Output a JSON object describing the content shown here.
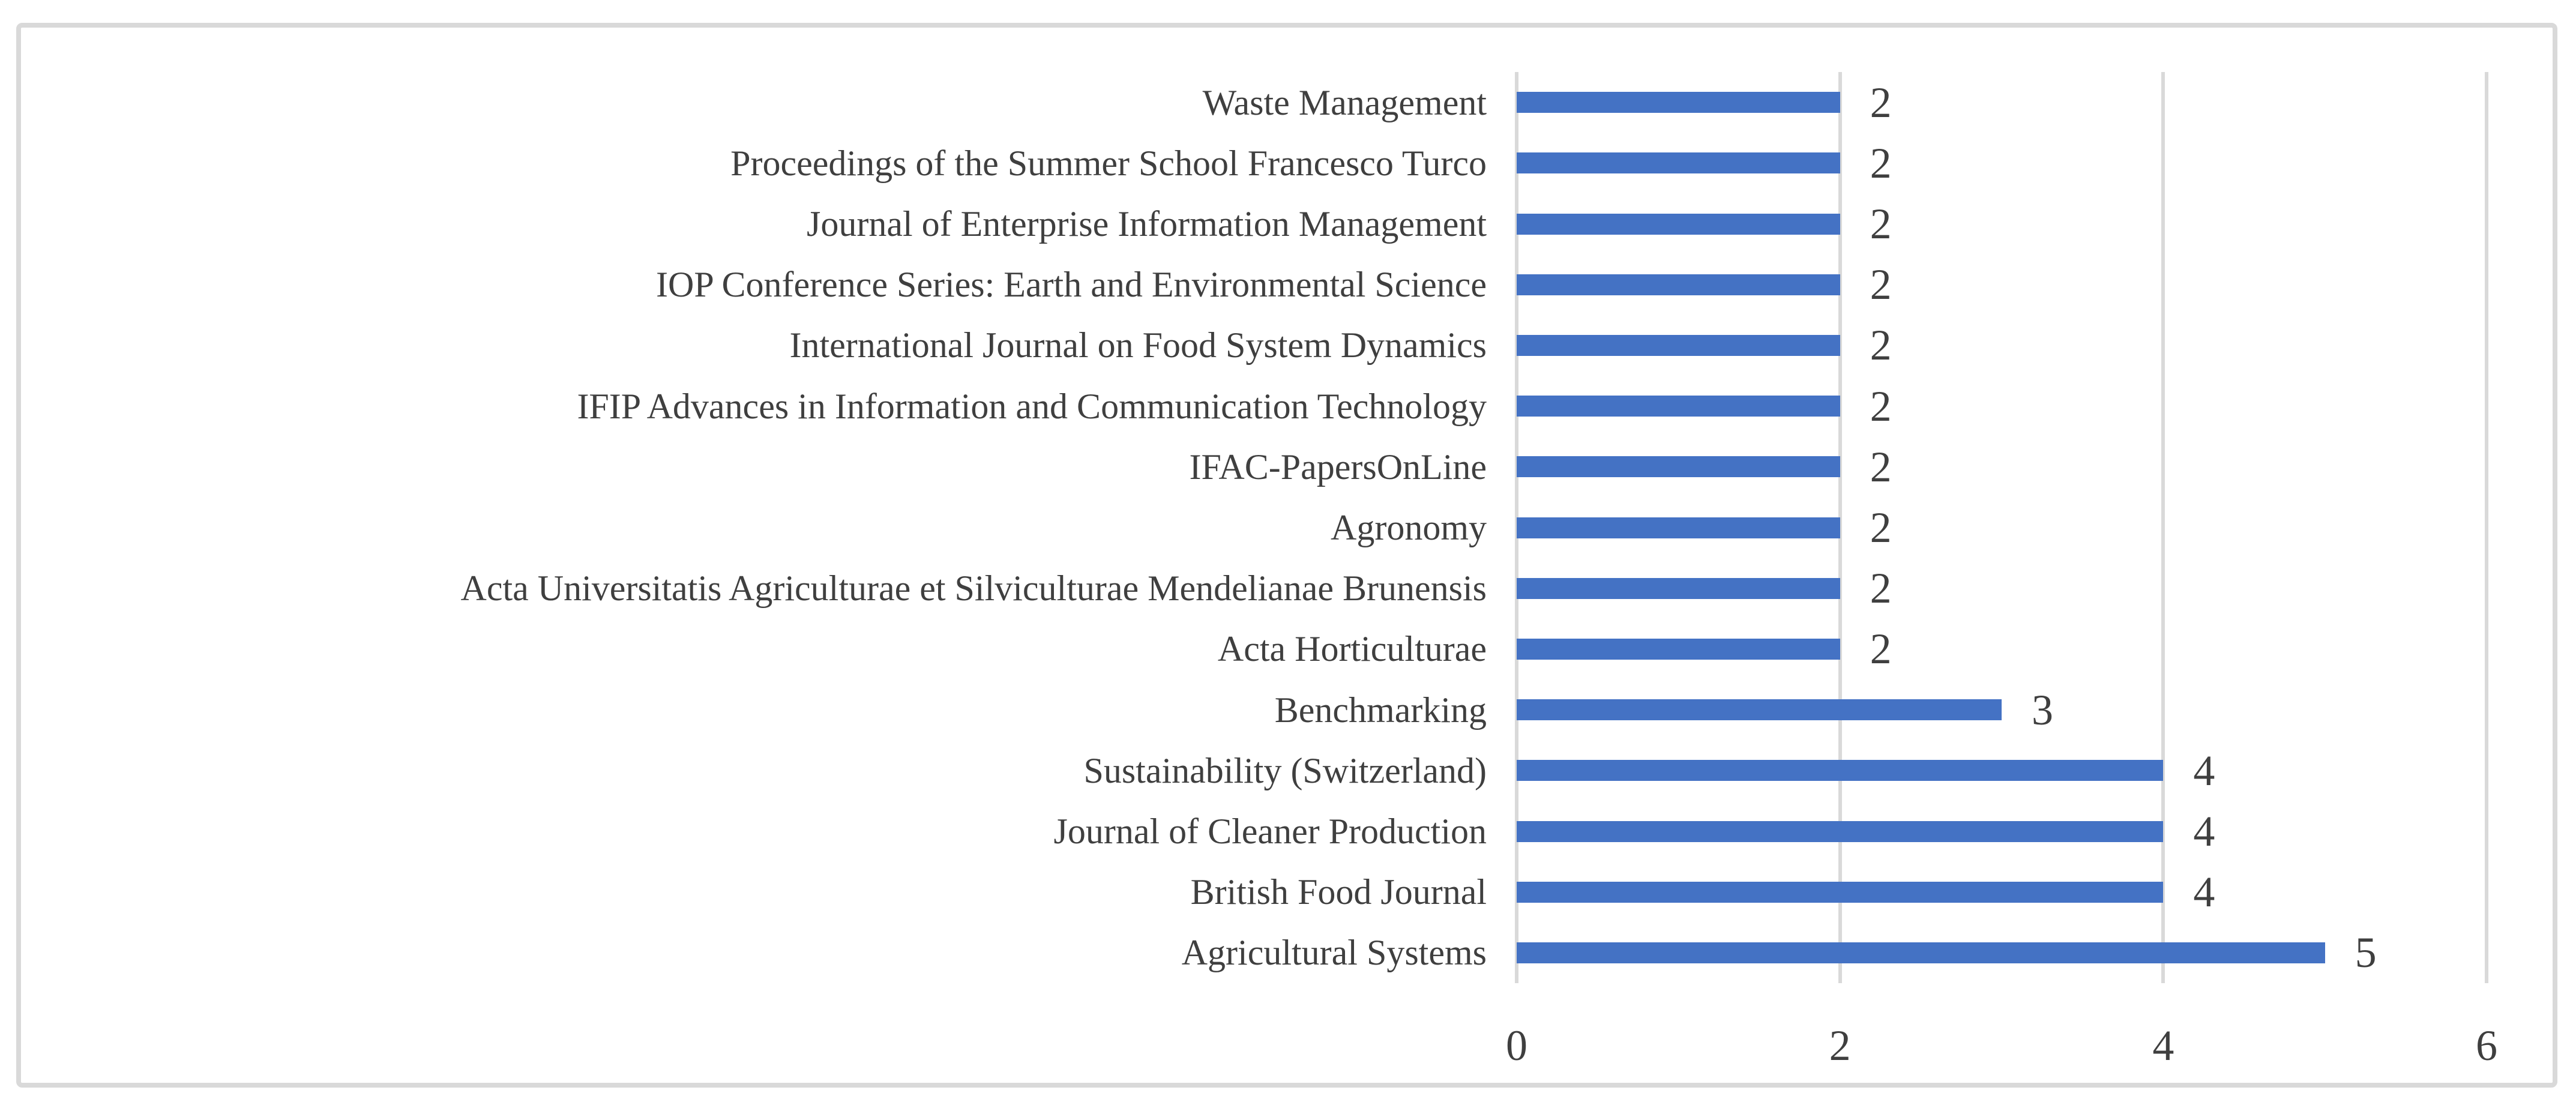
{
  "figure": {
    "background": "#ffffff",
    "border_color": "#d9d9d9",
    "text_color": "#3f3f3f"
  },
  "chart_data": {
    "type": "bar",
    "orientation": "horizontal",
    "title": "",
    "xlabel": "",
    "ylabel": "",
    "categories": [
      "Waste Management",
      "Proceedings of the Summer School Francesco Turco",
      "Journal of Enterprise Information Management",
      "IOP Conference Series: Earth and Environmental Science",
      "International Journal on Food System Dynamics",
      "IFIP Advances in Information and Communication Technology",
      "IFAC-PapersOnLine",
      "Agronomy",
      "Acta Universitatis Agriculturae et Silviculturae Mendelianae Brunensis",
      "Acta Horticulturae",
      "Benchmarking",
      "Sustainability (Switzerland)",
      "Journal of Cleaner Production",
      "British Food Journal",
      "Agricultural Systems"
    ],
    "values": [
      2,
      2,
      2,
      2,
      2,
      2,
      2,
      2,
      2,
      2,
      3,
      4,
      4,
      4,
      5
    ],
    "value_labels_shown": true,
    "bar_color": "#4472c4",
    "gridline_color": "#d9d9d9",
    "xlim": [
      0,
      6
    ],
    "xticks": [
      0,
      2,
      4,
      6
    ],
    "grid": true,
    "legend": false
  }
}
